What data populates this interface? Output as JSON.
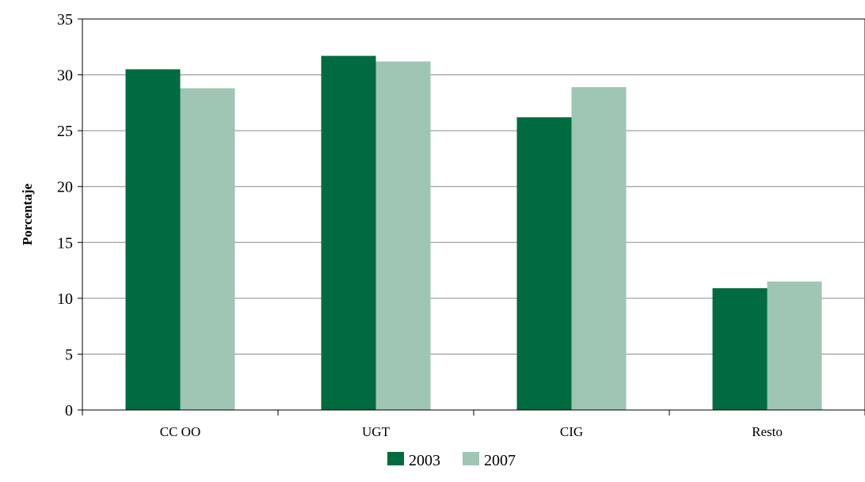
{
  "chart_data": {
    "type": "bar",
    "categories": [
      "CC OO",
      "UGT",
      "CIG",
      "Resto"
    ],
    "series": [
      {
        "name": "2003",
        "values": [
          30.5,
          31.7,
          26.2,
          10.9
        ],
        "color": "#006a40"
      },
      {
        "name": "2007",
        "values": [
          28.8,
          31.2,
          28.9,
          11.5
        ],
        "color": "#9fc5b5"
      }
    ],
    "title": "",
    "xlabel": "",
    "ylabel": "Porcentaje",
    "ylim": [
      0,
      35
    ],
    "yticks": [
      0,
      5,
      10,
      15,
      20,
      25,
      30,
      35
    ],
    "grid": true,
    "legend": "bottom-center"
  }
}
